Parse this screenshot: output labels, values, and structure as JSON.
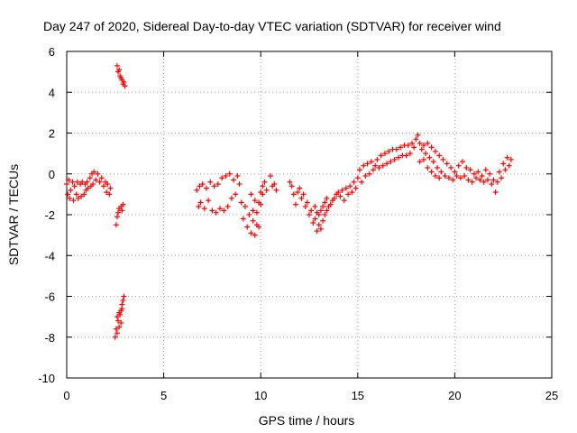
{
  "chart_data": {
    "type": "scatter",
    "title": "Day 247 of 2020, Sidereal Day-to-day VTEC variation (SDTVAR) for receiver wind",
    "xlabel": "GPS time / hours",
    "ylabel": "SDTVAR / TECUs",
    "xlim": [
      0,
      25
    ],
    "ylim": [
      -10,
      6
    ],
    "xticks": [
      "0",
      "5",
      "10",
      "15",
      "20",
      "25"
    ],
    "xtick_values": [
      0,
      5,
      10,
      15,
      20,
      25
    ],
    "yticks": [
      "-10",
      "-8",
      "-6",
      "-4",
      "-2",
      "0",
      "2",
      "4",
      "6"
    ],
    "ytick_values": [
      -10,
      -8,
      -6,
      -4,
      -2,
      0,
      2,
      4,
      6
    ],
    "grid": true,
    "marker": "+",
    "color": "#ff0000",
    "series": [
      {
        "name": "SDTVAR",
        "points": [
          [
            0.0,
            -0.5
          ],
          [
            0.05,
            -1.0
          ],
          [
            0.1,
            -0.3
          ],
          [
            0.15,
            -1.2
          ],
          [
            0.2,
            -0.8
          ],
          [
            0.3,
            -0.4
          ],
          [
            0.35,
            -1.3
          ],
          [
            0.4,
            -0.6
          ],
          [
            0.5,
            -1.0
          ],
          [
            0.55,
            -0.4
          ],
          [
            0.6,
            -1.2
          ],
          [
            0.7,
            -0.5
          ],
          [
            0.75,
            -1.1
          ],
          [
            0.8,
            -0.4
          ],
          [
            0.9,
            -1.0
          ],
          [
            0.95,
            -0.5
          ],
          [
            1.0,
            -0.8
          ],
          [
            1.05,
            -0.4
          ],
          [
            1.1,
            -0.7
          ],
          [
            1.2,
            -0.2
          ],
          [
            1.25,
            -0.6
          ],
          [
            1.3,
            0.0
          ],
          [
            1.35,
            -0.5
          ],
          [
            1.4,
            0.1
          ],
          [
            1.5,
            -0.3
          ],
          [
            1.6,
            0.0
          ],
          [
            1.7,
            -0.4
          ],
          [
            1.8,
            -0.2
          ],
          [
            1.9,
            -0.6
          ],
          [
            2.0,
            -0.4
          ],
          [
            2.05,
            -0.9
          ],
          [
            2.1,
            -0.5
          ],
          [
            2.2,
            -1.0
          ],
          [
            2.25,
            -0.7
          ],
          [
            2.6,
            5.3
          ],
          [
            2.65,
            5.0
          ],
          [
            2.7,
            5.1
          ],
          [
            2.75,
            4.8
          ],
          [
            2.8,
            4.7
          ],
          [
            2.85,
            4.6
          ],
          [
            2.9,
            4.4
          ],
          [
            2.95,
            4.5
          ],
          [
            3.0,
            4.3
          ],
          [
            2.55,
            -2.5
          ],
          [
            2.6,
            -2.1
          ],
          [
            2.65,
            -1.9
          ],
          [
            2.7,
            -1.7
          ],
          [
            2.8,
            -1.6
          ],
          [
            2.85,
            -1.8
          ],
          [
            2.9,
            -1.5
          ],
          [
            2.5,
            -8.0
          ],
          [
            2.55,
            -7.6
          ],
          [
            2.6,
            -7.8
          ],
          [
            2.65,
            -7.2
          ],
          [
            2.7,
            -7.5
          ],
          [
            2.75,
            -6.9
          ],
          [
            2.8,
            -6.7
          ],
          [
            2.85,
            -6.4
          ],
          [
            2.9,
            -6.2
          ],
          [
            2.95,
            -6.0
          ],
          [
            2.6,
            -7.0
          ],
          [
            2.7,
            -6.8
          ],
          [
            2.8,
            -7.3
          ],
          [
            2.85,
            -6.6
          ],
          [
            6.7,
            -0.8
          ],
          [
            6.8,
            -1.6
          ],
          [
            6.85,
            -0.6
          ],
          [
            6.9,
            -1.4
          ],
          [
            7.0,
            -0.5
          ],
          [
            7.1,
            -1.7
          ],
          [
            7.2,
            -0.7
          ],
          [
            7.3,
            -1.3
          ],
          [
            7.4,
            -0.4
          ],
          [
            7.5,
            -1.8
          ],
          [
            7.6,
            -0.6
          ],
          [
            7.7,
            -1.9
          ],
          [
            7.8,
            -0.5
          ],
          [
            7.9,
            -1.7
          ],
          [
            8.0,
            -0.2
          ],
          [
            8.1,
            -1.8
          ],
          [
            8.2,
            -0.1
          ],
          [
            8.3,
            -1.6
          ],
          [
            8.4,
            0.0
          ],
          [
            8.5,
            -1.2
          ],
          [
            8.6,
            -0.3
          ],
          [
            8.7,
            -1.0
          ],
          [
            8.8,
            -0.1
          ],
          [
            8.9,
            -0.5
          ],
          [
            9.0,
            -1.4
          ],
          [
            9.1,
            -2.2
          ],
          [
            9.2,
            -1.6
          ],
          [
            9.3,
            -2.6
          ],
          [
            9.4,
            -2.0
          ],
          [
            9.5,
            -2.9
          ],
          [
            9.6,
            -2.3
          ],
          [
            9.7,
            -3.0
          ],
          [
            9.8,
            -2.5
          ],
          [
            9.9,
            -2.6
          ],
          [
            9.9,
            -1.4
          ],
          [
            10.0,
            -0.9
          ],
          [
            10.1,
            -0.6
          ],
          [
            10.2,
            -0.4
          ],
          [
            10.3,
            -0.8
          ],
          [
            9.5,
            -1.0
          ],
          [
            9.6,
            -1.8
          ],
          [
            9.7,
            -1.3
          ],
          [
            9.8,
            -1.9
          ],
          [
            10.0,
            -1.5
          ],
          [
            10.1,
            -1.0
          ],
          [
            10.5,
            -0.1
          ],
          [
            10.6,
            -0.6
          ],
          [
            10.7,
            -0.5
          ],
          [
            10.8,
            -0.8
          ],
          [
            11.5,
            -0.4
          ],
          [
            11.6,
            -0.6
          ],
          [
            11.7,
            -1.0
          ],
          [
            11.8,
            -1.5
          ],
          [
            11.9,
            -0.9
          ],
          [
            12.0,
            -0.7
          ],
          [
            12.1,
            -1.2
          ],
          [
            12.2,
            -1.0
          ],
          [
            12.3,
            -1.6
          ],
          [
            12.4,
            -1.4
          ],
          [
            12.5,
            -2.0
          ],
          [
            12.6,
            -1.8
          ],
          [
            12.7,
            -2.4
          ],
          [
            12.8,
            -2.2
          ],
          [
            12.9,
            -2.8
          ],
          [
            13.0,
            -2.5
          ],
          [
            13.1,
            -2.7
          ],
          [
            13.2,
            -2.3
          ],
          [
            13.3,
            -2.0
          ],
          [
            13.4,
            -1.8
          ],
          [
            13.5,
            -1.6
          ],
          [
            13.6,
            -1.5
          ],
          [
            13.7,
            -1.3
          ],
          [
            13.8,
            -1.2
          ],
          [
            13.9,
            -1.0
          ],
          [
            14.0,
            -0.9
          ],
          [
            14.1,
            -1.1
          ],
          [
            14.2,
            -0.8
          ],
          [
            14.3,
            -1.3
          ],
          [
            14.4,
            -0.7
          ],
          [
            14.5,
            -1.0
          ],
          [
            14.6,
            -0.6
          ],
          [
            14.7,
            -0.9
          ],
          [
            14.8,
            -0.4
          ],
          [
            14.9,
            -0.7
          ],
          [
            15.0,
            -0.2
          ],
          [
            12.8,
            -1.6
          ],
          [
            12.9,
            -1.9
          ],
          [
            13.0,
            -2.0
          ],
          [
            13.1,
            -1.8
          ],
          [
            13.2,
            -1.6
          ],
          [
            13.3,
            -1.4
          ],
          [
            13.4,
            -1.2
          ],
          [
            15.1,
            0.2
          ],
          [
            15.2,
            -0.4
          ],
          [
            15.3,
            0.4
          ],
          [
            15.4,
            -0.1
          ],
          [
            15.5,
            0.5
          ],
          [
            15.6,
            0.0
          ],
          [
            15.7,
            0.6
          ],
          [
            15.8,
            0.2
          ],
          [
            15.9,
            0.4
          ],
          [
            16.0,
            0.7
          ],
          [
            16.1,
            0.3
          ],
          [
            16.2,
            0.9
          ],
          [
            16.3,
            0.4
          ],
          [
            16.4,
            1.0
          ],
          [
            16.5,
            0.5
          ],
          [
            16.6,
            1.1
          ],
          [
            16.7,
            0.6
          ],
          [
            16.8,
            1.2
          ],
          [
            16.9,
            0.7
          ],
          [
            17.0,
            1.2
          ],
          [
            17.1,
            0.8
          ],
          [
            17.2,
            1.3
          ],
          [
            17.3,
            0.9
          ],
          [
            17.4,
            1.4
          ],
          [
            17.5,
            0.9
          ],
          [
            17.6,
            1.4
          ],
          [
            17.7,
            1.0
          ],
          [
            17.8,
            1.5
          ],
          [
            17.9,
            1.3
          ],
          [
            18.0,
            1.7
          ],
          [
            18.1,
            1.9
          ],
          [
            18.2,
            1.5
          ],
          [
            18.3,
            1.2
          ],
          [
            18.4,
            1.4
          ],
          [
            18.5,
            1.0
          ],
          [
            18.6,
            1.5
          ],
          [
            18.7,
            0.8
          ],
          [
            18.8,
            1.3
          ],
          [
            18.9,
            0.6
          ],
          [
            19.0,
            1.1
          ],
          [
            19.1,
            0.3
          ],
          [
            19.2,
            0.9
          ],
          [
            19.3,
            0.1
          ],
          [
            19.4,
            0.7
          ],
          [
            19.5,
            -0.1
          ],
          [
            19.6,
            0.5
          ],
          [
            19.7,
            -0.2
          ],
          [
            19.8,
            0.3
          ],
          [
            19.9,
            -0.3
          ],
          [
            20.0,
            0.1
          ],
          [
            20.1,
            -0.1
          ],
          [
            20.2,
            0.4
          ],
          [
            20.3,
            -0.2
          ],
          [
            20.4,
            0.6
          ],
          [
            20.5,
            -0.1
          ],
          [
            20.6,
            0.3
          ],
          [
            20.7,
            -0.3
          ],
          [
            20.8,
            0.2
          ],
          [
            20.9,
            -0.4
          ],
          [
            21.0,
            0.0
          ],
          [
            21.1,
            -0.2
          ],
          [
            21.2,
            0.1
          ],
          [
            21.3,
            -0.3
          ],
          [
            21.4,
            -0.1
          ],
          [
            21.5,
            -0.4
          ],
          [
            21.6,
            0.2
          ],
          [
            21.7,
            -0.3
          ],
          [
            21.8,
            0.0
          ],
          [
            21.9,
            -0.5
          ],
          [
            22.0,
            -0.3
          ],
          [
            22.1,
            -0.9
          ],
          [
            22.2,
            -0.4
          ],
          [
            22.3,
            0.1
          ],
          [
            22.4,
            -0.2
          ],
          [
            22.5,
            0.5
          ],
          [
            22.6,
            0.2
          ],
          [
            22.7,
            0.8
          ],
          [
            22.8,
            0.4
          ],
          [
            22.9,
            0.7
          ],
          [
            18.2,
            0.6
          ],
          [
            18.4,
            0.7
          ],
          [
            18.6,
            0.3
          ],
          [
            18.8,
            0.1
          ],
          [
            19.0,
            -0.1
          ],
          [
            19.2,
            -0.2
          ]
        ]
      }
    ]
  }
}
